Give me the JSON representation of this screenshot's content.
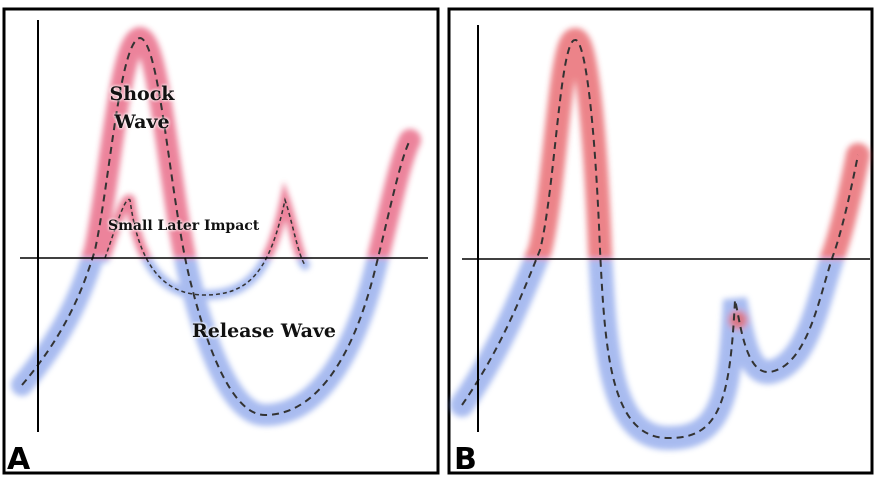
{
  "panels": [
    {
      "label": "A",
      "annotations": {
        "shock": "Shock Wave",
        "impact": "Small Later Impact",
        "release": "Release Wave"
      }
    },
    {
      "label": "B"
    }
  ]
}
